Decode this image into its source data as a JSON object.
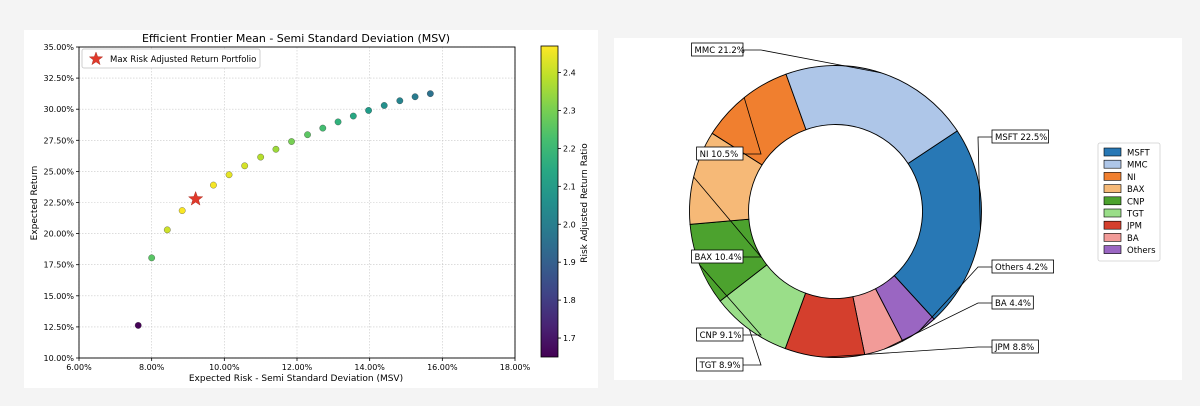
{
  "chart_data": [
    {
      "type": "scatter",
      "title": "Efficient Frontier Mean - Semi Standard Deviation (MSV)",
      "xlabel": "Expected Risk - Semi Standard Deviation (MSV)",
      "ylabel": "Expected Return",
      "xlim": [
        0.06,
        0.18
      ],
      "ylim": [
        0.1,
        0.35
      ],
      "x_ticks": [
        "6.00%",
        "8.00%",
        "10.00%",
        "12.00%",
        "14.00%",
        "16.00%",
        "18.00%"
      ],
      "y_ticks": [
        "10.00%",
        "12.50%",
        "15.00%",
        "17.50%",
        "20.00%",
        "22.50%",
        "25.00%",
        "27.50%",
        "30.00%",
        "32.50%",
        "35.00%"
      ],
      "grid": true,
      "legend_label": "Max Risk Adjusted Return Portfolio",
      "legend_position": "top-left",
      "colorbar": {
        "label": "Risk Adjusted Return Ratio",
        "range": [
          1.65,
          2.47
        ],
        "ticks": [
          "1.7",
          "1.8",
          "1.9",
          "2.0",
          "2.1",
          "2.2",
          "2.3",
          "2.4"
        ],
        "colormap": "viridis"
      },
      "points": [
        {
          "x": 0.0763,
          "y": 0.1262,
          "ratio": 1.655
        },
        {
          "x": 0.08,
          "y": 0.1805,
          "ratio": 2.255
        },
        {
          "x": 0.0843,
          "y": 0.203,
          "ratio": 2.41
        },
        {
          "x": 0.0884,
          "y": 0.2185,
          "ratio": 2.465
        },
        {
          "x": 0.097,
          "y": 0.239,
          "ratio": 2.46
        },
        {
          "x": 0.1013,
          "y": 0.2473,
          "ratio": 2.44
        },
        {
          "x": 0.1056,
          "y": 0.2545,
          "ratio": 2.42
        },
        {
          "x": 0.11,
          "y": 0.2615,
          "ratio": 2.38
        },
        {
          "x": 0.1142,
          "y": 0.2678,
          "ratio": 2.35
        },
        {
          "x": 0.1185,
          "y": 0.274,
          "ratio": 2.3
        },
        {
          "x": 0.1229,
          "y": 0.2795,
          "ratio": 2.26
        },
        {
          "x": 0.1271,
          "y": 0.2848,
          "ratio": 2.22
        },
        {
          "x": 0.1313,
          "y": 0.2898,
          "ratio": 2.18
        },
        {
          "x": 0.1355,
          "y": 0.2945,
          "ratio": 2.14
        },
        {
          "x": 0.1397,
          "y": 0.299,
          "ratio": 2.1
        },
        {
          "x": 0.144,
          "y": 0.303,
          "ratio": 2.06
        },
        {
          "x": 0.1483,
          "y": 0.3068,
          "ratio": 2.02
        },
        {
          "x": 0.1525,
          "y": 0.31,
          "ratio": 1.99
        },
        {
          "x": 0.1567,
          "y": 0.3125,
          "ratio": 1.96
        }
      ],
      "max_portfolio": {
        "x": 0.0921,
        "y": 0.2278,
        "color": "#e0392b"
      }
    },
    {
      "type": "pie",
      "style": "donut",
      "slices": [
        {
          "label": "MSFT",
          "value": 22.5,
          "color": "#2878b5",
          "callout": "MSFT 22.5%"
        },
        {
          "label": "Others",
          "value": 4.2,
          "color": "#9a66c2",
          "callout": "Others 4.2%"
        },
        {
          "label": "BA",
          "value": 4.4,
          "color": "#f29b98",
          "callout": "BA 4.4%"
        },
        {
          "label": "JPM",
          "value": 8.8,
          "color": "#d43f2d",
          "callout": "JPM 8.8%"
        },
        {
          "label": "TGT",
          "value": 8.9,
          "color": "#9ade89",
          "callout": "TGT 8.9%"
        },
        {
          "label": "CNP",
          "value": 9.1,
          "color": "#4ca22e",
          "callout": "CNP 9.1%"
        },
        {
          "label": "BAX",
          "value": 10.4,
          "color": "#f6b977",
          "callout": "BAX 10.4%"
        },
        {
          "label": "NI",
          "value": 10.5,
          "color": "#f07f2f",
          "callout": "NI 10.5%"
        },
        {
          "label": "MMC",
          "value": 21.2,
          "color": "#aec6e8",
          "callout": "MMC 21.2%"
        }
      ],
      "legend": [
        {
          "label": "MSFT",
          "color": "#2878b5"
        },
        {
          "label": "MMC",
          "color": "#aec6e8"
        },
        {
          "label": "NI",
          "color": "#f07f2f"
        },
        {
          "label": "BAX",
          "color": "#f6b977"
        },
        {
          "label": "CNP",
          "color": "#4ca22e"
        },
        {
          "label": "TGT",
          "color": "#9ade89"
        },
        {
          "label": "JPM",
          "color": "#d43f2d"
        },
        {
          "label": "BA",
          "color": "#f29b98"
        },
        {
          "label": "Others",
          "color": "#9a66c2"
        }
      ],
      "legend_position": "right"
    }
  ]
}
